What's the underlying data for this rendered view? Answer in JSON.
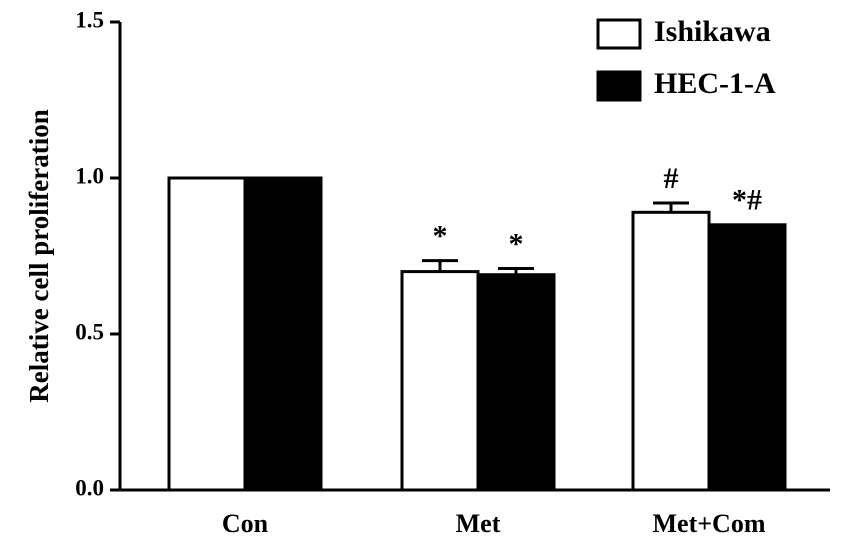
{
  "chart_data": {
    "type": "bar",
    "y_label": "Relative cell proliferation",
    "categories": [
      "Con",
      "Met",
      "Met+Com"
    ],
    "series": [
      {
        "name": "Ishikawa",
        "color": "#ffffff",
        "values": [
          1.0,
          0.7,
          0.89
        ],
        "errors": [
          null,
          0.035,
          0.03
        ],
        "annotations": [
          null,
          "*",
          "#"
        ]
      },
      {
        "name": "HEC-1-A",
        "color": "#000000",
        "values": [
          1.0,
          0.69,
          0.85
        ],
        "errors": [
          null,
          0.02,
          null
        ],
        "annotations": [
          null,
          "*",
          "*#"
        ]
      }
    ],
    "ylim": [
      0,
      1.5
    ],
    "yticks": [
      {
        "value": 0,
        "label": "0.0"
      },
      {
        "value": 0.5,
        "label": "0.5"
      },
      {
        "value": 1,
        "label": "1.0"
      },
      {
        "value": 1.5,
        "label": "1.5"
      }
    ],
    "legend": "top-right"
  }
}
